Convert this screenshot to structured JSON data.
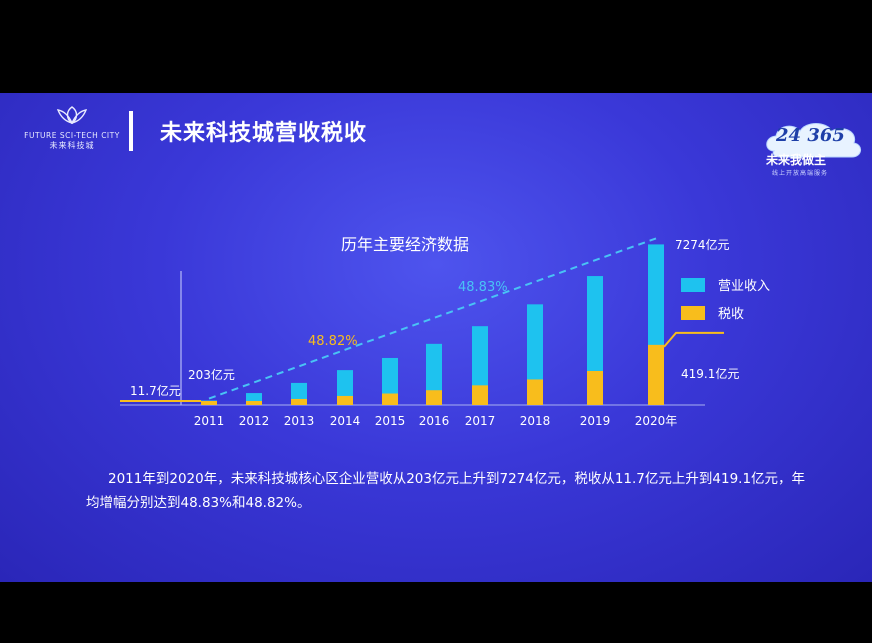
{
  "header": {
    "logo_en": "FUTURE SCI-TECH CITY",
    "logo_cn": "未来科技城",
    "title": "未来科技城营收税收"
  },
  "badge": {
    "number": "24 365",
    "cn": "未来我做主",
    "sub": "线上开放高端服务"
  },
  "chart_data": {
    "type": "bar",
    "title": "历年主要经济数据",
    "categories": [
      "2011",
      "2012",
      "2013",
      "2014",
      "2015",
      "2016",
      "2017",
      "2018",
      "2019",
      "2020年"
    ],
    "series": [
      {
        "name": "营业收入",
        "color": "#1ec2ef",
        "values": [
          203,
          540,
          1000,
          1580,
          2130,
          2770,
          3570,
          4560,
          5840,
          7274
        ]
      },
      {
        "name": "税收",
        "color": "#f8bd1c",
        "values": [
          11.7,
          24,
          42,
          63,
          80,
          103,
          137,
          178,
          237,
          419.1
        ]
      }
    ],
    "ylim": [
      0,
      7700
    ],
    "legend_position": "right",
    "annotations": {
      "revenue_start": "203亿元",
      "revenue_end": "7274亿元",
      "tax_start": "11.7亿元",
      "tax_end": "419.1亿元",
      "revenue_growth": "48.83%",
      "tax_growth": "48.82%"
    }
  },
  "body_text": "2011年到2020年，未来科技城核心区企业营收从203亿元上升到7274亿元，税收从11.7亿元上升到419.1亿元，年均增幅分别达到48.83%和48.82%。",
  "colors": {
    "background": "#3a38d8",
    "revenue": "#1ec2ef",
    "tax": "#f8bd1c",
    "growth_revenue_label": "#49c3f5",
    "growth_tax_label": "#f8bd1c"
  }
}
